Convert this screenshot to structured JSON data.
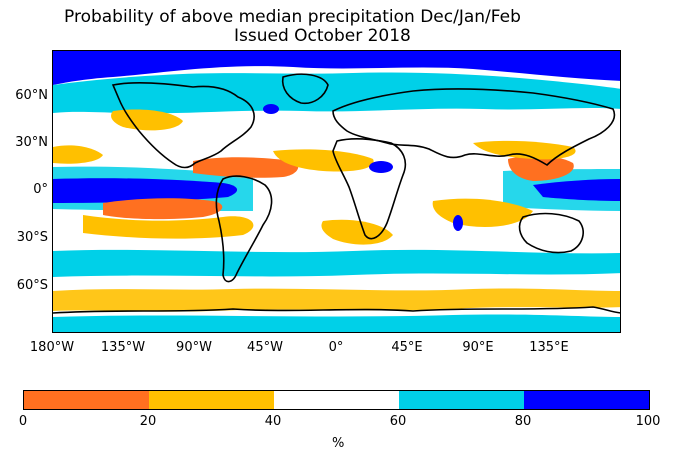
{
  "title": {
    "line1": "Probability of above median precipitation Dec/Jan/Feb",
    "line2": "Issued October 2018"
  },
  "map": {
    "lat_labels": [
      "60°N",
      "30°N",
      "0°",
      "30°S",
      "60°S"
    ],
    "lon_labels": [
      "180°W",
      "135°W",
      "90°W",
      "45°W",
      "0°",
      "45°E",
      "90°E",
      "135°E"
    ]
  },
  "colorbar": {
    "colors": [
      "#ff7020",
      "#ffc000",
      "#ffffff",
      "#00d0e8",
      "#0000ff"
    ],
    "ticks": [
      "0",
      "20",
      "40",
      "60",
      "80",
      "100"
    ],
    "unit": "%"
  }
}
